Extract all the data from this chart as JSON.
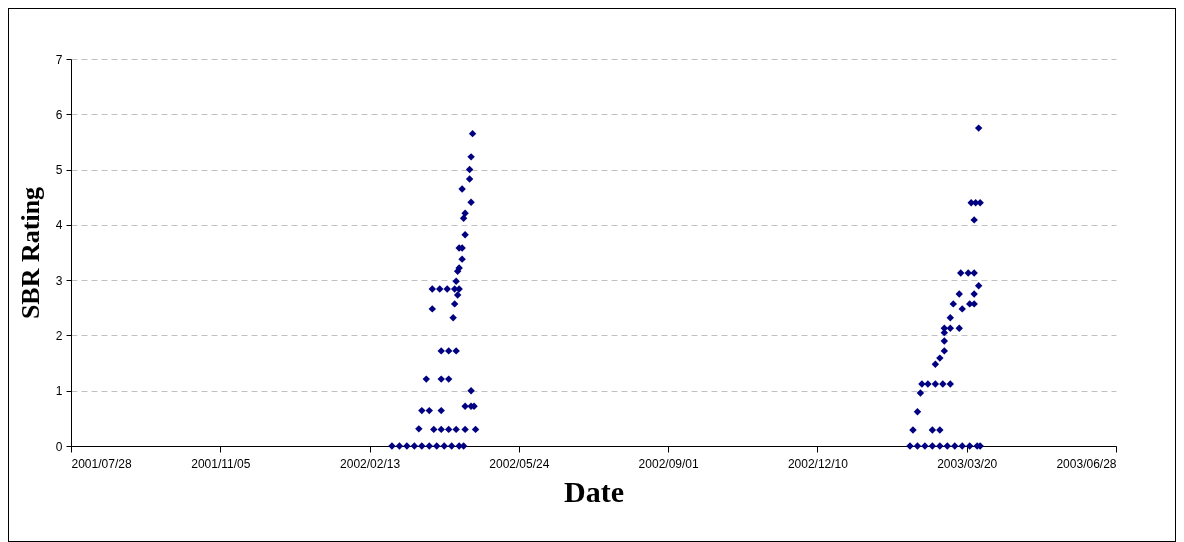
{
  "chart_data": {
    "type": "scatter",
    "xlabel": "Date",
    "ylabel": "SBR Rating",
    "x": [
      "2002-02-28",
      "2002-03-05",
      "2002-03-10",
      "2002-03-15",
      "2002-03-20",
      "2002-03-25",
      "2002-03-30",
      "2002-04-04",
      "2002-04-09",
      "2002-04-14",
      "2002-04-17",
      "2002-03-18",
      "2002-03-28",
      "2002-04-02",
      "2002-04-07",
      "2002-04-12",
      "2002-04-18",
      "2002-04-25",
      "2002-03-20",
      "2002-03-25",
      "2002-04-02",
      "2002-04-18",
      "2002-04-22",
      "2002-04-24",
      "2002-04-22",
      "2002-03-23",
      "2002-04-02",
      "2002-04-07",
      "2002-04-02",
      "2002-04-07",
      "2002-04-12",
      "2002-04-10",
      "2002-03-27",
      "2002-04-11",
      "2002-04-13",
      "2002-03-27",
      "2002-04-01",
      "2002-04-06",
      "2002-04-11",
      "2002-04-14",
      "2002-04-12",
      "2002-04-13",
      "2002-04-14",
      "2002-04-16",
      "2002-04-14",
      "2002-04-16",
      "2002-04-18",
      "2002-04-17",
      "2002-04-18",
      "2002-04-22",
      "2002-04-16",
      "2002-04-21",
      "2002-04-21",
      "2002-04-22",
      "2002-04-23",
      "2003-02-10",
      "2003-02-15",
      "2003-02-20",
      "2003-02-25",
      "2003-03-02",
      "2003-03-07",
      "2003-03-12",
      "2003-03-17",
      "2003-03-22",
      "2003-03-27",
      "2003-03-29",
      "2003-02-12",
      "2003-02-25",
      "2003-03-02",
      "2003-02-15",
      "2003-02-17",
      "2003-02-18",
      "2003-02-22",
      "2003-02-27",
      "2003-03-04",
      "2003-03-09",
      "2003-02-27",
      "2003-03-02",
      "2003-03-05",
      "2003-03-05",
      "2003-03-05",
      "2003-03-05",
      "2003-03-09",
      "2003-03-15",
      "2003-03-09",
      "2003-03-17",
      "2003-03-11",
      "2003-03-22",
      "2003-03-25",
      "2003-03-15",
      "2003-03-25",
      "2003-03-28",
      "2003-03-16",
      "2003-03-21",
      "2003-03-25",
      "2003-03-25",
      "2003-03-23",
      "2003-03-26",
      "2003-03-29",
      "2003-03-28"
    ],
    "series": [
      {
        "color": "#000080",
        "values": [
          0,
          0,
          0,
          0,
          0,
          0,
          0,
          0,
          0,
          0,
          0,
          0.31,
          0.3,
          0.3,
          0.3,
          0.3,
          0.3,
          0.3,
          0.64,
          0.64,
          0.64,
          0.72,
          0.72,
          0.72,
          1.0,
          1.21,
          1.21,
          1.21,
          1.72,
          1.72,
          1.72,
          2.32,
          2.48,
          2.57,
          2.73,
          2.84,
          2.84,
          2.84,
          2.84,
          2.84,
          2.98,
          3.16,
          3.22,
          3.38,
          3.58,
          3.58,
          3.82,
          4.12,
          4.21,
          4.41,
          4.65,
          4.83,
          5.0,
          5.23,
          5.65,
          0,
          0,
          0,
          0,
          0,
          0,
          0,
          0,
          0,
          0,
          0,
          0.29,
          0.29,
          0.29,
          0.62,
          0.96,
          1.12,
          1.12,
          1.12,
          1.12,
          1.12,
          1.48,
          1.59,
          1.72,
          1.9,
          2.05,
          2.13,
          2.13,
          2.13,
          2.32,
          2.48,
          2.57,
          2.57,
          2.57,
          2.75,
          2.75,
          2.9,
          3.13,
          3.13,
          3.13,
          4.09,
          4.4,
          4.4,
          4.4,
          5.75
        ]
      }
    ],
    "xlim": [
      "2001-07-28",
      "2003-06-28"
    ],
    "xticks": [
      {
        "value": "2001-07-28",
        "label": "2001/07/28"
      },
      {
        "value": "2001-11-05",
        "label": "2001/11/05"
      },
      {
        "value": "2002-02-13",
        "label": "2002/02/13"
      },
      {
        "value": "2002-05-24",
        "label": "2002/05/24"
      },
      {
        "value": "2002-09-01",
        "label": "2002/09/01"
      },
      {
        "value": "2002-12-10",
        "label": "2002/12/10"
      },
      {
        "value": "2003-03-20",
        "label": "2003/03/20"
      },
      {
        "value": "2003-06-28",
        "label": "2003/06/28"
      }
    ],
    "ylim": [
      0,
      7
    ],
    "yticks": [
      0,
      1,
      2,
      3,
      4,
      5,
      6,
      7
    ],
    "grid": "y",
    "marker": "diamond",
    "legend": false
  }
}
